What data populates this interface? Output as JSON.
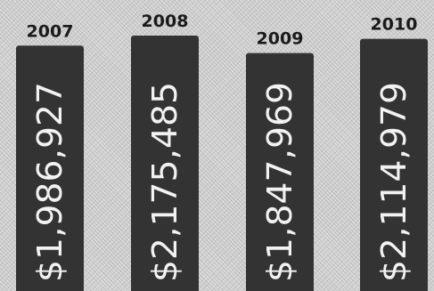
{
  "chart_data": {
    "type": "bar",
    "categories": [
      "2007",
      "2008",
      "2009",
      "2010"
    ],
    "values": [
      1986927,
      2175485,
      1847969,
      2114979
    ],
    "value_labels": [
      "$1,986,927",
      "$2,175,485",
      "$1,847,969",
      "$2,114,979"
    ],
    "title": "",
    "xlabel": "",
    "ylabel": "",
    "ylim": [
      0,
      2300000
    ],
    "grid": false,
    "legend": "none",
    "colors": {
      "bar": "#333333",
      "label_text": "#1a1a1a",
      "value_text": "#f2f2f2"
    }
  }
}
